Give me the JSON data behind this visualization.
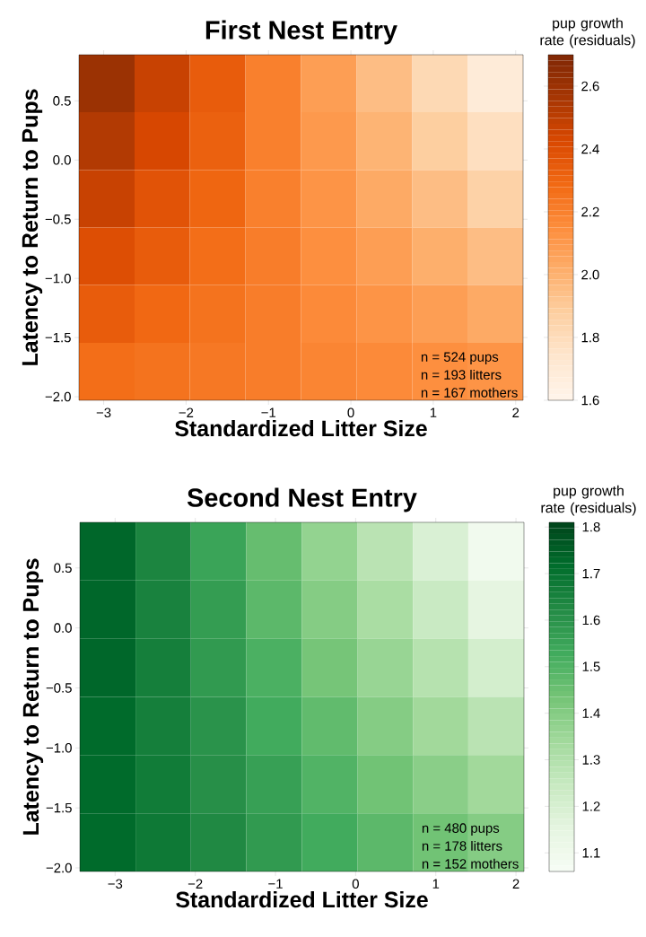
{
  "chart_data": [
    {
      "type": "heatmap",
      "title": "First Nest Entry",
      "xlabel": "Standardized Litter Size",
      "ylabel": "Latency to Return to Pups",
      "clabel": "pup growth rate (residuals)",
      "x": [
        -2.96,
        -2.29,
        -1.62,
        -0.94,
        -0.27,
        0.41,
        1.08,
        1.75
      ],
      "y": [
        0.65,
        0.16,
        -0.33,
        -0.81,
        -1.3,
        -1.79
      ],
      "cells": [
        [
          2.6,
          2.47,
          2.34,
          2.2,
          2.08,
          1.95,
          1.82,
          1.69
        ],
        [
          2.53,
          2.43,
          2.32,
          2.2,
          2.1,
          1.99,
          1.88,
          1.78
        ],
        [
          2.47,
          2.38,
          2.3,
          2.2,
          2.12,
          2.03,
          1.95,
          1.86
        ],
        [
          2.4,
          2.34,
          2.27,
          2.21,
          2.14,
          2.08,
          2.01,
          1.95
        ],
        [
          2.34,
          2.29,
          2.25,
          2.21,
          2.16,
          2.12,
          2.08,
          2.03
        ],
        [
          2.27,
          2.25,
          2.23,
          2.21,
          2.18,
          2.16,
          2.14,
          2.12
        ]
      ],
      "clim": [
        1.6,
        2.7
      ],
      "cticks": [
        1.6,
        1.8,
        {
          "value": 2,
          "label": "2.0"
        },
        2.2,
        2.4,
        2.6
      ],
      "colors": [
        "#fff5eb",
        "#fee6ce",
        "#fdd0a2",
        "#fdae6b",
        "#fd8d3c",
        "#f16913",
        "#d94801",
        "#a63603",
        "#7f2704"
      ],
      "xlim": [
        -3.3,
        2.09
      ],
      "xticks": [
        {
          "value": -3,
          "label": "−3"
        },
        {
          "value": -2,
          "label": "−2"
        },
        {
          "value": -1,
          "label": "−1"
        },
        0,
        1,
        2
      ],
      "ylim": [
        -2.03,
        0.89
      ],
      "yticks": [
        {
          "value": -2,
          "label": "−2.0"
        },
        {
          "value": -1.5,
          "label": "−1.5"
        },
        {
          "value": -1,
          "label": "−1.0"
        },
        {
          "value": -0.5,
          "label": "−0.5"
        },
        {
          "value": 0,
          "label": "0.0"
        },
        0.5
      ],
      "annotations": [
        "n = 524 pups",
        "n = 193 litters",
        "n = 167 mothers"
      ]
    },
    {
      "type": "heatmap",
      "title": "Second Nest Entry",
      "xlabel": "Standardized Litter Size",
      "ylabel": "Latency to Return to Pups",
      "clabel": "pup growth rate (residuals)",
      "x": [
        -3.09,
        -2.4,
        -1.71,
        -1.02,
        -0.32,
        0.37,
        1.06,
        1.75
      ],
      "y": [
        0.64,
        0.15,
        -0.33,
        -0.82,
        -1.3,
        -1.79
      ],
      "cells": [
        [
          1.73,
          1.64,
          1.55,
          1.46,
          1.37,
          1.28,
          1.19,
          1.09
        ],
        [
          1.73,
          1.65,
          1.57,
          1.48,
          1.4,
          1.32,
          1.24,
          1.15
        ],
        [
          1.73,
          1.66,
          1.58,
          1.51,
          1.43,
          1.36,
          1.29,
          1.21
        ],
        [
          1.72,
          1.66,
          1.6,
          1.53,
          1.47,
          1.4,
          1.34,
          1.28
        ],
        [
          1.72,
          1.67,
          1.61,
          1.56,
          1.5,
          1.44,
          1.39,
          1.34
        ],
        [
          1.72,
          1.68,
          1.63,
          1.58,
          1.53,
          1.48,
          1.44,
          1.4
        ]
      ],
      "clim": [
        1.06,
        1.81
      ],
      "cticks": [
        1.1,
        1.2,
        1.3,
        1.4,
        1.5,
        1.6,
        1.7,
        1.8
      ],
      "colors": [
        "#f7fcf5",
        "#e5f5e0",
        "#c7e9c0",
        "#a1d99b",
        "#74c476",
        "#41ab5d",
        "#238b45",
        "#006d2c",
        "#00441b"
      ],
      "xlim": [
        -3.44,
        2.1
      ],
      "xticks": [
        {
          "value": -3,
          "label": "−3"
        },
        {
          "value": -2,
          "label": "−2"
        },
        {
          "value": -1,
          "label": "−1"
        },
        0,
        1,
        2
      ],
      "ylim": [
        -2.03,
        0.88
      ],
      "yticks": [
        {
          "value": -2,
          "label": "−2.0"
        },
        {
          "value": -1.5,
          "label": "−1.5"
        },
        {
          "value": -1,
          "label": "−1.0"
        },
        {
          "value": -0.5,
          "label": "−0.5"
        },
        {
          "value": 0,
          "label": "0.0"
        },
        0.5
      ],
      "annotations": [
        "n = 480 pups",
        "n = 178 litters",
        "n = 152 mothers"
      ]
    }
  ]
}
